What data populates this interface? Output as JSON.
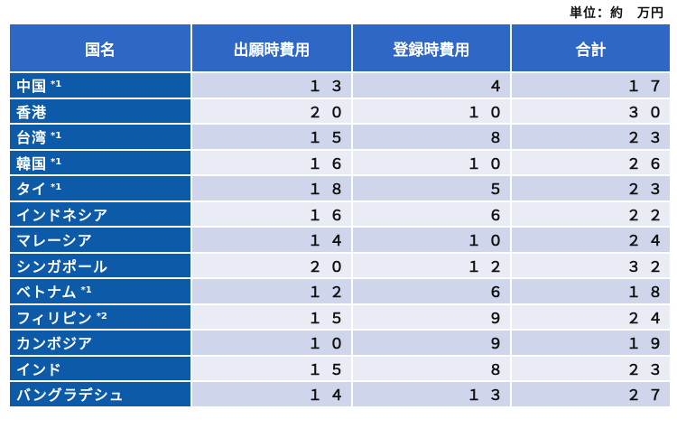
{
  "unit_note": "単位：約　万円",
  "headers": [
    "国名",
    "出願時費用",
    "登録時費用",
    "合計"
  ],
  "rows": [
    {
      "country": "中国",
      "note": "*1",
      "filing": "１３",
      "registration": "４",
      "total": "１７"
    },
    {
      "country": "香港",
      "note": "",
      "filing": "２０",
      "registration": "１０",
      "total": "３０"
    },
    {
      "country": "台湾",
      "note": "*1",
      "filing": "１５",
      "registration": "８",
      "total": "２３"
    },
    {
      "country": "韓国",
      "note": "*1",
      "filing": "１６",
      "registration": "１０",
      "total": "２６"
    },
    {
      "country": "タイ",
      "note": "*1",
      "filing": "１８",
      "registration": "５",
      "total": "２３"
    },
    {
      "country": "インドネシア",
      "note": "",
      "filing": "１６",
      "registration": "６",
      "total": "２２"
    },
    {
      "country": "マレーシア",
      "note": "",
      "filing": "１４",
      "registration": "１０",
      "total": "２４"
    },
    {
      "country": "シンガポール",
      "note": "",
      "filing": "２０",
      "registration": "１２",
      "total": "３２"
    },
    {
      "country": "ベトナム",
      "note": "*1",
      "filing": "１２",
      "registration": "６",
      "total": "１８"
    },
    {
      "country": "フィリピン",
      "note": "*2",
      "filing": "１５",
      "registration": "９",
      "total": "２４"
    },
    {
      "country": "カンボジア",
      "note": "",
      "filing": "１０",
      "registration": "９",
      "total": "１９"
    },
    {
      "country": "インド",
      "note": "",
      "filing": "１５",
      "registration": "８",
      "total": "２３"
    },
    {
      "country": "バングラデシュ",
      "note": "",
      "filing": "１４",
      "registration": "１３",
      "total": "２７"
    }
  ],
  "colors": {
    "header_bg": "#2f67c6",
    "name_bg": "#0c5aa8",
    "row_odd": "#cfd5ea",
    "row_even": "#e9ebf5"
  }
}
